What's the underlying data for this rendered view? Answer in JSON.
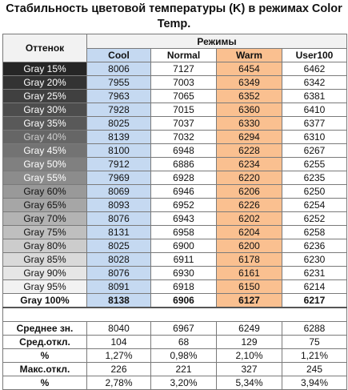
{
  "title": "Стабильность цветовой температуры (K) в режимах Color Temp.",
  "header": {
    "shade_label": "Оттенок",
    "modes_label": "Режимы",
    "columns": [
      "Cool",
      "Normal",
      "Warm",
      "User100"
    ]
  },
  "rows": [
    {
      "label": "Gray 15%",
      "bg": "#262626",
      "fg": "#ffffff",
      "values": [
        8006,
        7127,
        6454,
        6462
      ]
    },
    {
      "label": "Gray 20%",
      "bg": "#333333",
      "fg": "#ffffff",
      "values": [
        7955,
        7003,
        6349,
        6342
      ]
    },
    {
      "label": "Gray 25%",
      "bg": "#404040",
      "fg": "#ffffff",
      "values": [
        7963,
        7065,
        6352,
        6381
      ]
    },
    {
      "label": "Gray 30%",
      "bg": "#4d4d4d",
      "fg": "#ffffff",
      "values": [
        7928,
        7015,
        6360,
        6410
      ]
    },
    {
      "label": "Gray 35%",
      "bg": "#595959",
      "fg": "#ffffff",
      "values": [
        8025,
        7037,
        6330,
        6377
      ]
    },
    {
      "label": "Gray 40%",
      "bg": "#666666",
      "fg": "#cfcfcf",
      "values": [
        8139,
        7032,
        6294,
        6310
      ]
    },
    {
      "label": "Gray 45%",
      "bg": "#737373",
      "fg": "#ffffff",
      "values": [
        8100,
        6948,
        6228,
        6267
      ]
    },
    {
      "label": "Gray 50%",
      "bg": "#808080",
      "fg": "#ffffff",
      "values": [
        7912,
        6886,
        6234,
        6255
      ]
    },
    {
      "label": "Gray 55%",
      "bg": "#8c8c8c",
      "fg": "#ffffff",
      "values": [
        7969,
        6928,
        6220,
        6235
      ]
    },
    {
      "label": "Gray 60%",
      "bg": "#999999",
      "fg": "#111111",
      "values": [
        8069,
        6946,
        6206,
        6250
      ]
    },
    {
      "label": "Gray 65%",
      "bg": "#a6a6a6",
      "fg": "#111111",
      "values": [
        8093,
        6952,
        6226,
        6254
      ]
    },
    {
      "label": "Gray 70%",
      "bg": "#b3b3b3",
      "fg": "#111111",
      "values": [
        8076,
        6943,
        6202,
        6252
      ]
    },
    {
      "label": "Gray 75%",
      "bg": "#bfbfbf",
      "fg": "#111111",
      "values": [
        8131,
        6958,
        6204,
        6258
      ]
    },
    {
      "label": "Gray 80%",
      "bg": "#cccccc",
      "fg": "#111111",
      "values": [
        8025,
        6900,
        6200,
        6236
      ]
    },
    {
      "label": "Gray 85%",
      "bg": "#d9d9d9",
      "fg": "#111111",
      "values": [
        8028,
        6911,
        6178,
        6230
      ]
    },
    {
      "label": "Gray 90%",
      "bg": "#e6e6e6",
      "fg": "#111111",
      "values": [
        8076,
        6930,
        6161,
        6231
      ]
    },
    {
      "label": "Gray 95%",
      "bg": "#f2f2f2",
      "fg": "#111111",
      "values": [
        8091,
        6918,
        6150,
        6214
      ]
    },
    {
      "label": "Gray 100%",
      "bg": "#ffffff",
      "fg": "#111111",
      "values": [
        8138,
        6906,
        6127,
        6217
      ],
      "bold": true
    }
  ],
  "stats": [
    {
      "label": "Среднее зн.",
      "values": [
        "8040",
        "6967",
        "6249",
        "6288"
      ]
    },
    {
      "label": "Сред.откл.",
      "values": [
        "104",
        "68",
        "129",
        "75"
      ]
    },
    {
      "label": "%",
      "values": [
        "1,27%",
        "0,98%",
        "2,10%",
        "1,21%"
      ]
    },
    {
      "label": "Макс.откл.",
      "values": [
        "226",
        "221",
        "327",
        "245"
      ]
    },
    {
      "label": "%",
      "values": [
        "2,78%",
        "3,20%",
        "5,34%",
        "3,94%"
      ]
    }
  ],
  "colors": {
    "cool": "#c5d9f1",
    "warm": "#fac090",
    "header": "#f2f2f2",
    "border": "#7a7a7a"
  }
}
